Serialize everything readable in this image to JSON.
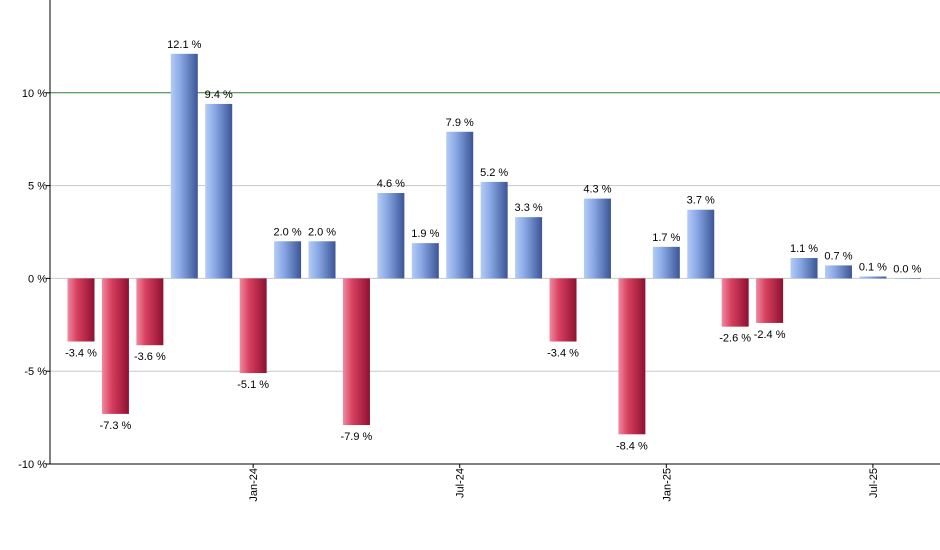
{
  "chart_data": {
    "type": "bar",
    "categories": [
      null,
      null,
      null,
      null,
      null,
      "Jan-24",
      null,
      null,
      null,
      null,
      null,
      "Jul-24",
      null,
      null,
      null,
      null,
      null,
      "Jan-25",
      null,
      null,
      null,
      null,
      null,
      "Jul-25",
      null
    ],
    "values": [
      -3.4,
      -7.3,
      -3.6,
      12.1,
      9.4,
      -5.1,
      2.0,
      2.0,
      -7.9,
      4.6,
      1.9,
      7.9,
      5.2,
      3.3,
      -3.4,
      4.3,
      -8.4,
      1.7,
      3.7,
      -2.6,
      -2.4,
      1.1,
      0.7,
      0.1,
      0.0
    ],
    "value_labels": [
      "-3.4 %",
      "-7.3 %",
      "-3.6 %",
      "12.1 %",
      "9.4 %",
      "-5.1 %",
      "2.0 %",
      "2.0 %",
      "-7.9 %",
      "4.6 %",
      "1.9 %",
      "7.9 %",
      "5.2 %",
      "3.3 %",
      "-3.4 %",
      "4.3 %",
      "-8.4 %",
      "1.7 %",
      "3.7 %",
      "-2.6 %",
      "-2.4 %",
      "1.1 %",
      "0.7 %",
      "0.1 %",
      "0.0 %"
    ],
    "positive_color": "#6f8fd8",
    "negative_color": "#c8284a",
    "ylim": [
      -10,
      15
    ],
    "yticks": [
      {
        "value": -10,
        "label": "-10 %"
      },
      {
        "value": -5,
        "label": "-5 %"
      },
      {
        "value": 0,
        "label": "0 %"
      },
      {
        "value": 5,
        "label": "5 %"
      },
      {
        "value": 10,
        "label": "10 %"
      }
    ],
    "grid": true,
    "grid_colors": [
      "#c8c8c8",
      "#c8c8c8",
      "#c8c8c8",
      "#c8c8c8",
      "#2e7d32"
    ]
  }
}
